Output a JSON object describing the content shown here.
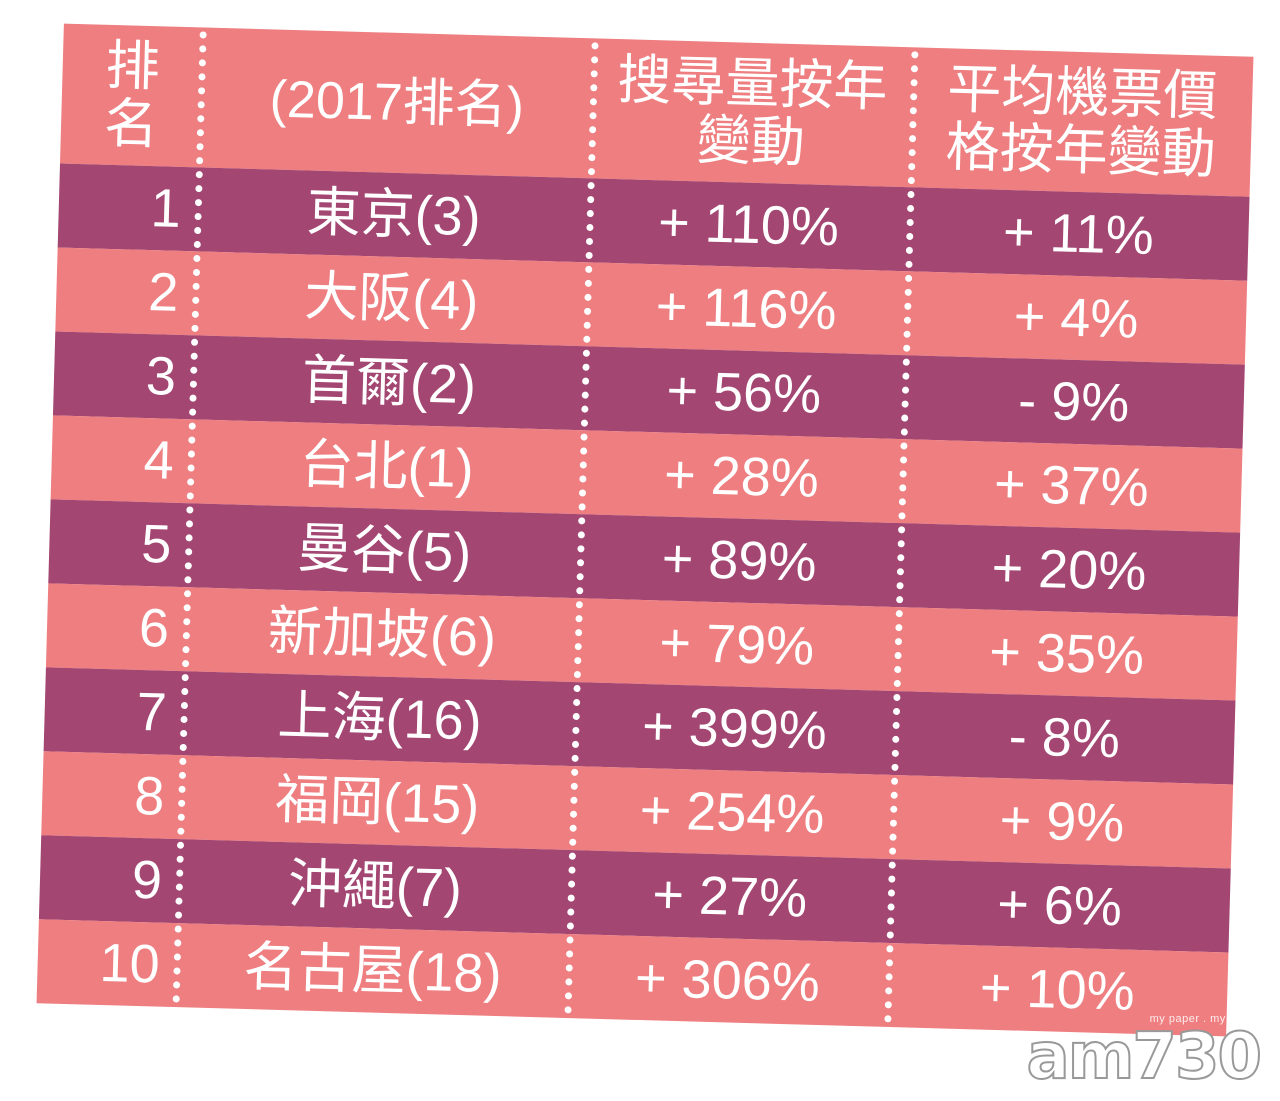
{
  "header": {
    "rank": "排名",
    "city": "(2017排名)",
    "search": "搜尋量按年變動",
    "price": "平均機票價格按年變動"
  },
  "rows": [
    {
      "rank": "1",
      "city": "東京(3)",
      "search": "+ 110%",
      "price": "+ 11%"
    },
    {
      "rank": "2",
      "city": "大阪(4)",
      "search": "+ 116%",
      "price": "+ 4%"
    },
    {
      "rank": "3",
      "city": "首爾(2)",
      "search": "+ 56%",
      "price": "- 9%"
    },
    {
      "rank": "4",
      "city": "台北(1)",
      "search": "+ 28%",
      "price": "+ 37%"
    },
    {
      "rank": "5",
      "city": "曼谷(5)",
      "search": "+ 89%",
      "price": "+ 20%"
    },
    {
      "rank": "6",
      "city": "新加坡(6)",
      "search": "+ 79%",
      "price": "+ 35%"
    },
    {
      "rank": "7",
      "city": "上海(16)",
      "search": "+ 399%",
      "price": "- 8%"
    },
    {
      "rank": "8",
      "city": "福岡(15)",
      "search": "+ 254%",
      "price": "+ 9%"
    },
    {
      "rank": "9",
      "city": "沖繩(7)",
      "search": "+ 27%",
      "price": "+ 6%"
    },
    {
      "rank": "10",
      "city": "名古屋(18)",
      "search": "+ 306%",
      "price": "+ 10%"
    }
  ],
  "watermark": {
    "tagline": "my paper . my paper",
    "logo": "am730"
  },
  "colors": {
    "pink": "#ee7e80",
    "purple": "#a34672",
    "text": "#ffffff"
  }
}
